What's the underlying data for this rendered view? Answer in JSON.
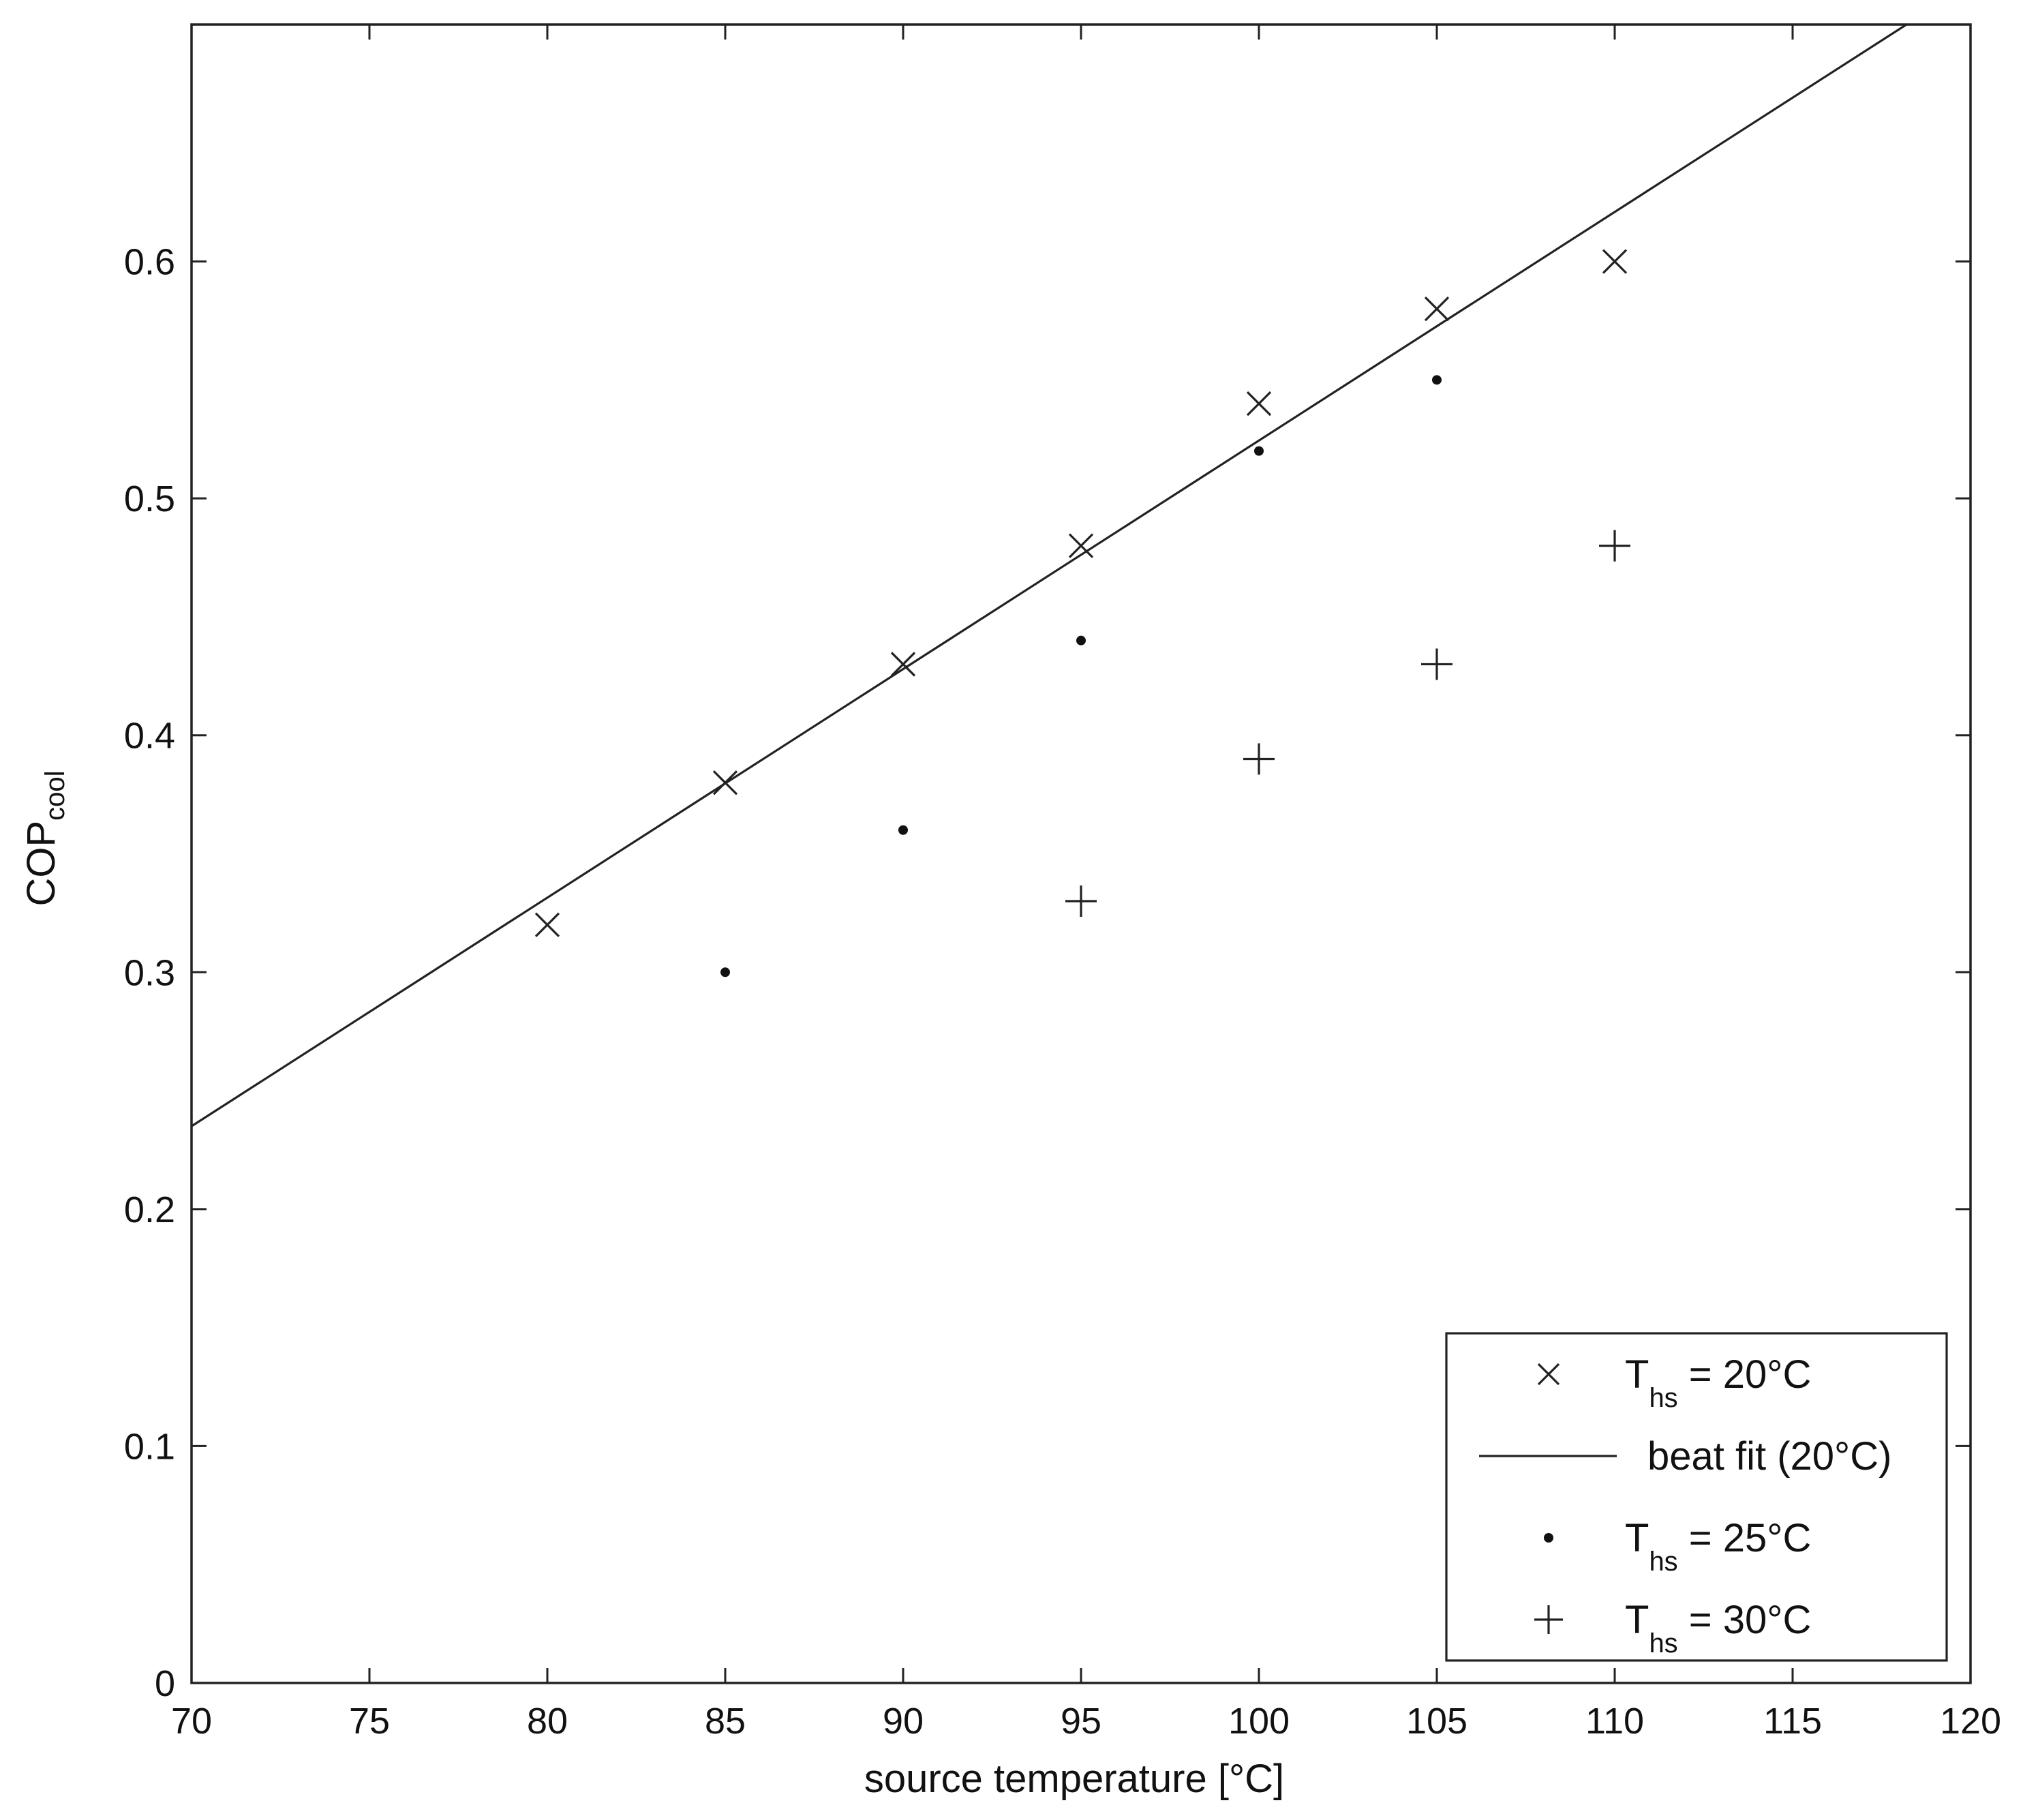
{
  "chart_data": {
    "type": "scatter",
    "xlabel": "source temperature [°C]",
    "ylabel": {
      "main": "COP",
      "subscript": "cool"
    },
    "xlim": [
      70,
      120
    ],
    "ylim": [
      0,
      0.7
    ],
    "xticks": [
      70,
      75,
      80,
      85,
      90,
      95,
      100,
      105,
      110,
      115,
      120
    ],
    "yticks": [
      0,
      0.1,
      0.2,
      0.3,
      0.4,
      0.5,
      0.6
    ],
    "grid": false,
    "legend_position": "bottom-right",
    "series": [
      {
        "name": "T_hs = 20°C",
        "legend": {
          "main": "T",
          "sub": "hs",
          "rest": " = 20°C"
        },
        "marker": "x",
        "x": [
          80,
          85,
          90,
          95,
          100,
          105,
          110
        ],
        "y": [
          0.32,
          0.38,
          0.43,
          0.48,
          0.54,
          0.58,
          0.6
        ]
      },
      {
        "name": "beat fit (20°C)",
        "legend": {
          "main": "beat fit (20°C)",
          "sub": "",
          "rest": ""
        },
        "marker": "line",
        "x": [
          70,
          118.2
        ],
        "y": [
          0.235,
          0.7
        ]
      },
      {
        "name": "T_hs = 25°C",
        "legend": {
          "main": "T",
          "sub": "hs",
          "rest": " = 25°C"
        },
        "marker": "dot",
        "x": [
          85,
          90,
          95,
          100,
          105
        ],
        "y": [
          0.3,
          0.36,
          0.44,
          0.52,
          0.55
        ]
      },
      {
        "name": "T_hs = 30°C",
        "legend": {
          "main": "T",
          "sub": "hs",
          "rest": " = 30°C"
        },
        "marker": "plus",
        "x": [
          95,
          100,
          105,
          110
        ],
        "y": [
          0.33,
          0.39,
          0.43,
          0.48
        ]
      }
    ]
  }
}
